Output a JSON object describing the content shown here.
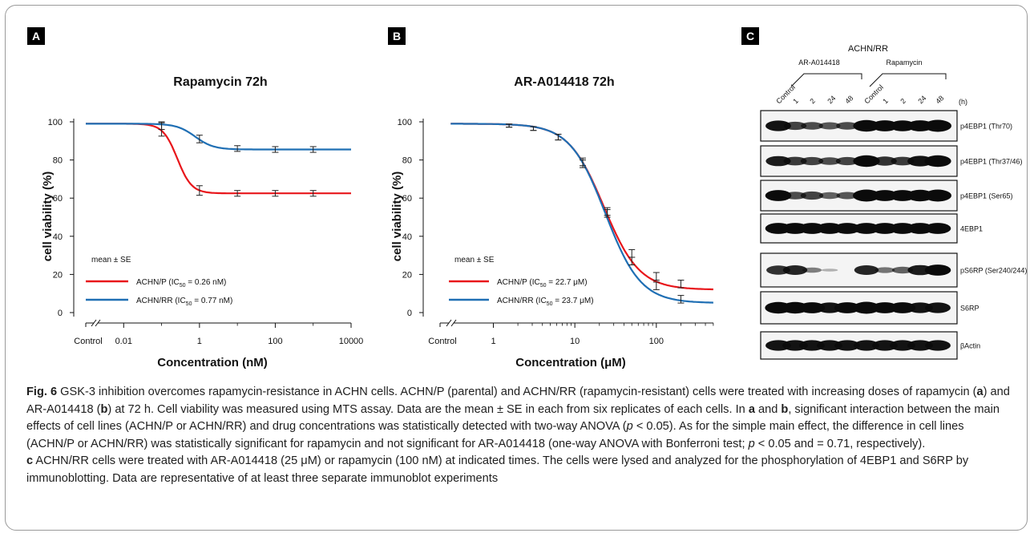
{
  "panels": {
    "a": "A",
    "b": "B",
    "c": "C"
  },
  "chart_data": [
    {
      "type": "line",
      "title": "Rapamycin  72h",
      "xlabel": "Concentration (nM)",
      "ylabel": "cell viability (%)",
      "x_scale": "log",
      "x_ticks": [
        "Control",
        "0.01",
        "1",
        "100",
        "10000"
      ],
      "y_ticks": [
        "0",
        "20",
        "40",
        "60",
        "80",
        "100"
      ],
      "ylim": [
        0,
        100
      ],
      "legend_title": "mean ± SE",
      "series": [
        {
          "name": "ACHN/P (IC50 = 0.26 nM)",
          "label_pre": "ACHN/P (IC",
          "label_sub": "50",
          "label_post": " = 0.26 nM)",
          "color": "#e8161b",
          "curve": {
            "top": 99,
            "bottom": 62.5,
            "ec50": 0.26,
            "hill": 2.3,
            "xmin": 0.001,
            "xmax": 10000
          },
          "points": [
            {
              "x": 0.1,
              "y": 96,
              "err": 3.5
            },
            {
              "x": 1,
              "y": 64,
              "err": 2.5
            },
            {
              "x": 10,
              "y": 62.5,
              "err": 1.5
            },
            {
              "x": 100,
              "y": 62.5,
              "err": 1.5
            },
            {
              "x": 1000,
              "y": 62.5,
              "err": 1.5
            }
          ]
        },
        {
          "name": "ACHN/RR (IC50 = 0.77 nM)",
          "label_pre": "ACHN/RR (IC",
          "label_sub": "50",
          "label_post": " = 0.77 nM)",
          "color": "#1f6fb4",
          "curve": {
            "top": 99,
            "bottom": 85.5,
            "ec50": 0.77,
            "hill": 1.8,
            "xmin": 0.001,
            "xmax": 10000
          },
          "points": [
            {
              "x": 0.1,
              "y": 98,
              "err": 2
            },
            {
              "x": 1,
              "y": 91,
              "err": 2
            },
            {
              "x": 10,
              "y": 86,
              "err": 1.5
            },
            {
              "x": 100,
              "y": 85.5,
              "err": 1.5
            },
            {
              "x": 1000,
              "y": 85.5,
              "err": 1.5
            }
          ]
        }
      ]
    },
    {
      "type": "line",
      "title": "AR-A014418  72h",
      "xlabel": "Concentration (μM)",
      "ylabel": "cell viability (%)",
      "x_scale": "log",
      "x_ticks": [
        "Control",
        "1",
        "10",
        "100"
      ],
      "y_ticks": [
        "0",
        "20",
        "40",
        "60",
        "80",
        "100"
      ],
      "ylim": [
        0,
        100
      ],
      "legend_title": "mean ± SE",
      "series": [
        {
          "name": "ACHN/P (IC50 = 22.7 μM)",
          "label_pre": "ACHN/P (IC",
          "label_sub": "50",
          "label_post": " = 22.7 μM)",
          "color": "#e8161b",
          "curve": {
            "top": 99,
            "bottom": 12,
            "ec50": 22.7,
            "hill": 2.0,
            "xmin": 0.3,
            "xmax": 500
          },
          "points": [
            {
              "x": 1.56,
              "y": 98,
              "err": 0.8
            },
            {
              "x": 3.1,
              "y": 96.5,
              "err": 1
            },
            {
              "x": 6.25,
              "y": 92,
              "err": 1.5
            },
            {
              "x": 12.5,
              "y": 78,
              "err": 2
            },
            {
              "x": 25,
              "y": 52,
              "err": 2
            },
            {
              "x": 50,
              "y": 31,
              "err": 2
            },
            {
              "x": 100,
              "y": 19,
              "err": 2
            },
            {
              "x": 200,
              "y": 15,
              "err": 2
            }
          ]
        },
        {
          "name": "ACHN/RR (IC50 = 23.7 μM)",
          "label_pre": "ACHN/RR (IC",
          "label_sub": "50",
          "label_post": " = 23.7 μM)",
          "color": "#1f6fb4",
          "curve": {
            "top": 99,
            "bottom": 5,
            "ec50": 23.7,
            "hill": 2.0,
            "xmin": 0.3,
            "xmax": 500
          },
          "points": [
            {
              "x": 1.56,
              "y": 98,
              "err": 0.8
            },
            {
              "x": 3.1,
              "y": 96.5,
              "err": 1
            },
            {
              "x": 6.25,
              "y": 92,
              "err": 1.5
            },
            {
              "x": 12.5,
              "y": 79,
              "err": 2
            },
            {
              "x": 25,
              "y": 53,
              "err": 2
            },
            {
              "x": 50,
              "y": 27,
              "err": 2
            },
            {
              "x": 100,
              "y": 14,
              "err": 2
            },
            {
              "x": 200,
              "y": 7,
              "err": 2
            }
          ]
        }
      ]
    }
  ],
  "blot": {
    "cell_line": "ACHN/RR",
    "group_labels": [
      "AR-A014418",
      "Rapamycin"
    ],
    "lanes": [
      "Control",
      "1",
      "2",
      "24",
      "48",
      "Control",
      "1",
      "2",
      "24",
      "48"
    ],
    "time_unit": "(h)",
    "rows": [
      {
        "label": "p4EBP1 (Thr70)",
        "intensities": [
          0.85,
          0.6,
          0.55,
          0.5,
          0.55,
          0.95,
          0.9,
          0.88,
          0.9,
          1.0
        ]
      },
      {
        "label": "p4EBP1 (Thr37/46)",
        "intensities": [
          0.8,
          0.65,
          0.6,
          0.55,
          0.6,
          0.95,
          0.7,
          0.65,
          0.85,
          0.95
        ]
      },
      {
        "label": "p4EBP1 (Ser65)",
        "intensities": [
          0.9,
          0.55,
          0.6,
          0.45,
          0.5,
          1.0,
          0.9,
          0.9,
          0.95,
          1.0
        ]
      },
      {
        "label": "4EBP1",
        "intensities": [
          0.9,
          0.9,
          0.9,
          0.9,
          0.9,
          0.9,
          0.9,
          0.9,
          0.9,
          0.9
        ]
      },
      {
        "label": "pS6RP (Ser240/244)",
        "intensities": [
          0.7,
          0.75,
          0.3,
          0.05,
          0.0,
          0.75,
          0.35,
          0.45,
          0.8,
          0.9
        ]
      },
      {
        "label": "S6RP",
        "intensities": [
          0.95,
          0.95,
          0.9,
          0.85,
          0.9,
          1.0,
          0.9,
          0.9,
          0.85,
          0.85
        ]
      },
      {
        "label": "βActin",
        "intensities": [
          0.85,
          0.85,
          0.85,
          0.85,
          0.85,
          0.85,
          0.85,
          0.85,
          0.85,
          0.85
        ]
      }
    ]
  },
  "caption": {
    "fig_label": "Fig. 6",
    "title": " GSK-3 inhibition overcomes rapamycin-resistance in ACHN cells. ACHN/P (parental) and ACHN/RR (rapamycin-resistant) cells were treated with increasing doses of rapamycin (",
    "bold_a": "a",
    "t2": ") and AR-A014418 (",
    "bold_b": "b",
    "t3": ") at 72 h. Cell viability was measured using MTS assay. Data are the mean ± SE in each from six replicates of each cells. In ",
    "bold_a2": "a",
    "t4": " and ",
    "bold_b2": "b",
    "t5": ", significant interaction between the main effects of cell lines (ACHN/P or ACHN/RR) and drug concentrations was statistically detected with two-way ANOVA (",
    "p1": "p",
    "t6": " < 0.05). As for the simple main effect, the difference in cell lines (ACHN/P or ACHN/RR) was statistically significant for rapamycin and not significant for AR-A014418 (one-way ANOVA with Bonferroni test; ",
    "p2": "p",
    "t7": " < 0.05 and = 0.71, respectively).",
    "bold_c": "c",
    "t8": " ACHN/RR cells were treated with AR-A014418 (25 μM) or rapamycin (100 nM) at indicated times. The cells were lysed and analyzed for the phosphorylation of 4EBP1 and S6RP by immunoblotting. Data are representative of at least three separate immunoblot experiments"
  }
}
